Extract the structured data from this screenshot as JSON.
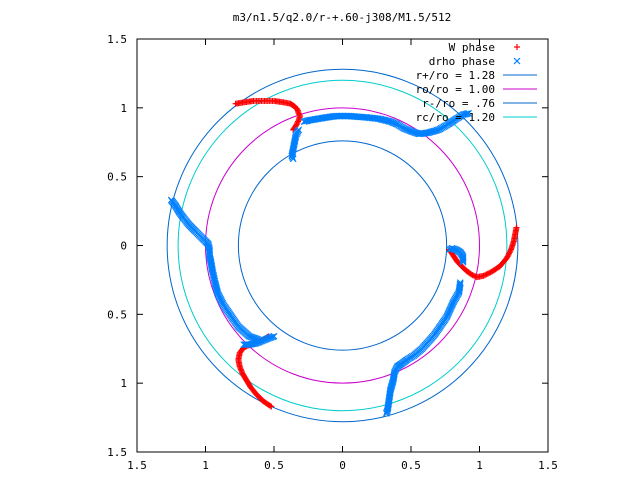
{
  "chart_data": {
    "type": "scatter",
    "title": "m3/n1.5/q2.0/r-+.60-j308/M1.5/512",
    "xlabel": "",
    "ylabel": "",
    "xlim": [
      -1.5,
      1.5
    ],
    "ylim": [
      -1.5,
      1.5
    ],
    "x_ticks": [
      {
        "value": -1.5,
        "label": "1.5"
      },
      {
        "value": -1.0,
        "label": "1"
      },
      {
        "value": -0.5,
        "label": "0.5"
      },
      {
        "value": 0.0,
        "label": "0"
      },
      {
        "value": 0.5,
        "label": "0.5"
      },
      {
        "value": 1.0,
        "label": "1"
      },
      {
        "value": 1.5,
        "label": "1.5"
      }
    ],
    "y_ticks": [
      {
        "value": 1.5,
        "label": "1.5"
      },
      {
        "value": 1.0,
        "label": "1"
      },
      {
        "value": 0.5,
        "label": "0.5"
      },
      {
        "value": 0.0,
        "label": "0"
      },
      {
        "value": -0.5,
        "label": "0.5"
      },
      {
        "value": -1.0,
        "label": "1"
      },
      {
        "value": -1.5,
        "label": "1.5"
      }
    ],
    "grid": false,
    "legend_position": "top-right",
    "circles": [
      {
        "name": "r+/ro = 1.28",
        "radius": 1.28,
        "color": "#0066cc"
      },
      {
        "name": "ro/ro = 1.00",
        "radius": 1.0,
        "color": "#cc00cc"
      },
      {
        "name": "r-/ro = .76",
        "radius": 0.76,
        "color": "#0066cc"
      },
      {
        "name": "rc/ro = 1.20",
        "radius": 1.2,
        "color": "#00cccc"
      }
    ],
    "series": [
      {
        "name": "W phase",
        "marker": "plus",
        "color": "#ff0000",
        "segments": [
          [
            [
              -0.78,
              1.03
            ],
            [
              -0.72,
              1.04
            ],
            [
              -0.65,
              1.05
            ],
            [
              -0.58,
              1.05
            ],
            [
              -0.5,
              1.05
            ],
            [
              -0.43,
              1.04
            ],
            [
              -0.38,
              1.03
            ],
            [
              -0.35,
              1.01
            ],
            [
              -0.33,
              0.99
            ],
            [
              -0.32,
              0.96
            ],
            [
              -0.31,
              0.94
            ],
            [
              -0.32,
              0.91
            ],
            [
              -0.34,
              0.87
            ],
            [
              -0.36,
              0.84
            ]
          ],
          [
            [
              0.78,
              -0.03
            ],
            [
              0.8,
              -0.06
            ],
            [
              0.82,
              -0.09
            ],
            [
              0.84,
              -0.12
            ],
            [
              0.87,
              -0.15
            ],
            [
              0.9,
              -0.18
            ],
            [
              0.94,
              -0.21
            ],
            [
              0.98,
              -0.23
            ],
            [
              1.03,
              -0.22
            ],
            [
              1.09,
              -0.19
            ],
            [
              1.15,
              -0.15
            ],
            [
              1.2,
              -0.09
            ],
            [
              1.23,
              -0.03
            ],
            [
              1.25,
              0.03
            ],
            [
              1.26,
              0.08
            ],
            [
              1.27,
              0.13
            ]
          ],
          [
            [
              -0.54,
              -0.66
            ],
            [
              -0.57,
              -0.68
            ],
            [
              -0.62,
              -0.7
            ],
            [
              -0.67,
              -0.72
            ],
            [
              -0.72,
              -0.74
            ],
            [
              -0.75,
              -0.78
            ],
            [
              -0.76,
              -0.83
            ],
            [
              -0.75,
              -0.88
            ],
            [
              -0.73,
              -0.93
            ],
            [
              -0.7,
              -0.98
            ],
            [
              -0.67,
              -1.03
            ],
            [
              -0.63,
              -1.08
            ],
            [
              -0.58,
              -1.13
            ],
            [
              -0.52,
              -1.17
            ]
          ]
        ]
      },
      {
        "name": "drho phase",
        "marker": "cross",
        "color": "#0080ff",
        "segments": [
          [
            [
              -0.28,
              0.9
            ],
            [
              -0.24,
              0.91
            ],
            [
              -0.18,
              0.92
            ],
            [
              -0.12,
              0.93
            ],
            [
              -0.05,
              0.94
            ],
            [
              0.05,
              0.94
            ],
            [
              0.18,
              0.93
            ],
            [
              0.27,
              0.92
            ],
            [
              0.35,
              0.9
            ],
            [
              0.4,
              0.88
            ],
            [
              0.45,
              0.85
            ],
            [
              0.5,
              0.83
            ],
            [
              0.56,
              0.81
            ],
            [
              0.63,
              0.82
            ],
            [
              0.7,
              0.84
            ],
            [
              0.77,
              0.88
            ],
            [
              0.83,
              0.92
            ],
            [
              0.88,
              0.95
            ],
            [
              0.92,
              0.96
            ]
          ],
          [
            [
              -0.32,
              0.84
            ],
            [
              -0.34,
              0.8
            ],
            [
              -0.35,
              0.75
            ],
            [
              -0.36,
              0.7
            ],
            [
              -0.37,
              0.65
            ],
            [
              -0.36,
              0.63
            ]
          ],
          [
            [
              0.78,
              -0.03
            ],
            [
              0.8,
              -0.02
            ],
            [
              0.83,
              -0.03
            ],
            [
              0.86,
              -0.05
            ],
            [
              0.88,
              -0.08
            ],
            [
              0.88,
              -0.12
            ]
          ],
          [
            [
              0.86,
              -0.27
            ],
            [
              0.85,
              -0.34
            ],
            [
              0.81,
              -0.41
            ],
            [
              0.76,
              -0.52
            ],
            [
              0.67,
              -0.65
            ],
            [
              0.58,
              -0.75
            ],
            [
              0.52,
              -0.8
            ],
            [
              0.47,
              -0.83
            ],
            [
              0.43,
              -0.86
            ],
            [
              0.4,
              -0.88
            ],
            [
              0.38,
              -0.92
            ],
            [
              0.37,
              -0.98
            ],
            [
              0.35,
              -1.05
            ],
            [
              0.34,
              -1.12
            ],
            [
              0.33,
              -1.19
            ],
            [
              0.32,
              -1.22
            ]
          ],
          [
            [
              -1.25,
              0.33
            ],
            [
              -1.22,
              0.29
            ],
            [
              -1.19,
              0.24
            ],
            [
              -1.16,
              0.2
            ],
            [
              -1.12,
              0.15
            ],
            [
              -1.07,
              0.1
            ],
            [
              -1.03,
              0.06
            ],
            [
              -1.0,
              0.03
            ],
            [
              -0.98,
              0.01
            ],
            [
              -0.97,
              -0.03
            ],
            [
              -0.97,
              -0.08
            ],
            [
              -0.96,
              -0.12
            ],
            [
              -0.95,
              -0.18
            ],
            [
              -0.93,
              -0.27
            ],
            [
              -0.91,
              -0.35
            ],
            [
              -0.87,
              -0.43
            ],
            [
              -0.76,
              -0.59
            ],
            [
              -0.68,
              -0.66
            ],
            [
              -0.62,
              -0.68
            ]
          ],
          [
            [
              -0.5,
              -0.66
            ],
            [
              -0.53,
              -0.67
            ],
            [
              -0.58,
              -0.69
            ],
            [
              -0.63,
              -0.71
            ],
            [
              -0.68,
              -0.72
            ],
            [
              -0.72,
              -0.72
            ]
          ]
        ]
      }
    ]
  }
}
